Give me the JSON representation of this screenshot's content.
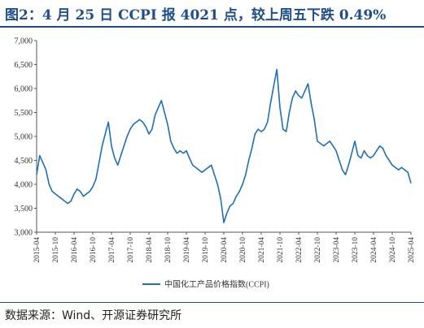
{
  "header": {
    "title": "图2：4 月 25 日 CCPI 报 4021 点，较上周五下跌 0.49%"
  },
  "footer": {
    "source": "数据来源：Wind、开源证券研究所"
  },
  "colors": {
    "title": "#1f4e8c",
    "series": "#1f6fb8",
    "axis": "#555555"
  },
  "chart_data": {
    "type": "line",
    "title": "",
    "xlabel": "",
    "ylabel": "",
    "ylim": [
      3000,
      7000
    ],
    "yticks": [
      "3,000",
      "3,500",
      "4,000",
      "4,500",
      "5,000",
      "5,500",
      "6,000",
      "6,500",
      "7,000"
    ],
    "xtick_labels": [
      "2015-04",
      "2015-10",
      "2016-04",
      "2016-10",
      "2017-04",
      "2017-10",
      "2018-04",
      "2018-10",
      "2019-04",
      "2019-10",
      "2020-04",
      "2020-10",
      "2021-04",
      "2021-10",
      "2022-04",
      "2022-10",
      "2023-04",
      "2023-10",
      "2024-04",
      "2024-10",
      "2025-04"
    ],
    "grid": false,
    "legend_position": "bottom",
    "series": [
      {
        "name": "中国化工产品价格指数(CCPI)",
        "x": [
          "2015-04",
          "2015-05",
          "2015-06",
          "2015-07",
          "2015-08",
          "2015-09",
          "2015-10",
          "2015-11",
          "2015-12",
          "2016-01",
          "2016-02",
          "2016-03",
          "2016-04",
          "2016-05",
          "2016-06",
          "2016-07",
          "2016-08",
          "2016-09",
          "2016-10",
          "2016-11",
          "2016-12",
          "2017-01",
          "2017-02",
          "2017-03",
          "2017-04",
          "2017-05",
          "2017-06",
          "2017-07",
          "2017-08",
          "2017-09",
          "2017-10",
          "2017-11",
          "2017-12",
          "2018-01",
          "2018-02",
          "2018-03",
          "2018-04",
          "2018-05",
          "2018-06",
          "2018-07",
          "2018-08",
          "2018-09",
          "2018-10",
          "2018-11",
          "2018-12",
          "2019-01",
          "2019-02",
          "2019-03",
          "2019-04",
          "2019-05",
          "2019-06",
          "2019-07",
          "2019-08",
          "2019-09",
          "2019-10",
          "2019-11",
          "2019-12",
          "2020-01",
          "2020-02",
          "2020-03",
          "2020-04",
          "2020-05",
          "2020-06",
          "2020-07",
          "2020-08",
          "2020-09",
          "2020-10",
          "2020-11",
          "2020-12",
          "2021-01",
          "2021-02",
          "2021-03",
          "2021-04",
          "2021-05",
          "2021-06",
          "2021-07",
          "2021-08",
          "2021-09",
          "2021-10",
          "2021-11",
          "2021-12",
          "2022-01",
          "2022-02",
          "2022-03",
          "2022-04",
          "2022-05",
          "2022-06",
          "2022-07",
          "2022-08",
          "2022-09",
          "2022-10",
          "2022-11",
          "2022-12",
          "2023-01",
          "2023-02",
          "2023-03",
          "2023-04",
          "2023-05",
          "2023-06",
          "2023-07",
          "2023-08",
          "2023-09",
          "2023-10",
          "2023-11",
          "2023-12",
          "2024-01",
          "2024-02",
          "2024-03",
          "2024-04",
          "2024-05",
          "2024-06",
          "2024-07",
          "2024-08",
          "2024-09",
          "2024-10",
          "2024-11",
          "2024-12",
          "2025-01",
          "2025-02",
          "2025-03",
          "2025-04"
        ],
        "values": [
          4200,
          4600,
          4450,
          4300,
          4000,
          3850,
          3800,
          3750,
          3700,
          3650,
          3600,
          3650,
          3800,
          3900,
          3850,
          3750,
          3800,
          3850,
          3950,
          4100,
          4450,
          4800,
          5050,
          5300,
          4800,
          4550,
          4400,
          4600,
          4800,
          5000,
          5150,
          5250,
          5300,
          5350,
          5300,
          5200,
          5050,
          5150,
          5450,
          5600,
          5750,
          5500,
          5250,
          4900,
          4750,
          4650,
          4700,
          4650,
          4700,
          4550,
          4400,
          4350,
          4300,
          4250,
          4300,
          4350,
          4400,
          4200,
          4000,
          3700,
          3200,
          3400,
          3550,
          3600,
          3750,
          3850,
          4000,
          4200,
          4500,
          4750,
          5050,
          5150,
          5100,
          5150,
          5300,
          5700,
          6050,
          6400,
          5600,
          5150,
          5100,
          5500,
          5800,
          5950,
          5850,
          5800,
          5950,
          6100,
          5700,
          5350,
          4900,
          4850,
          4800,
          4850,
          4900,
          4800,
          4700,
          4500,
          4300,
          4200,
          4400,
          4650,
          4900,
          4600,
          4550,
          4700,
          4600,
          4550,
          4600,
          4700,
          4800,
          4750,
          4600,
          4500,
          4400,
          4350,
          4300,
          4350,
          4300,
          4250,
          4021
        ]
      }
    ]
  }
}
